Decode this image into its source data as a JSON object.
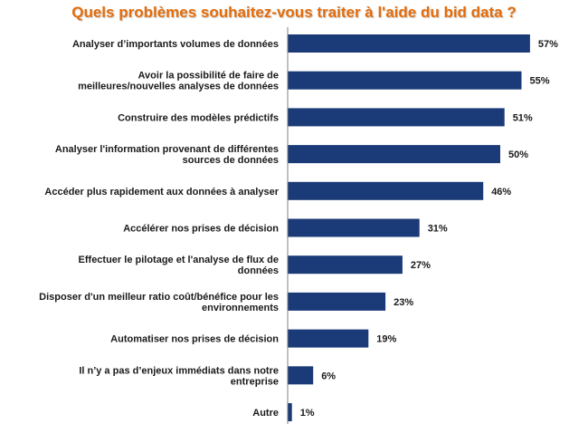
{
  "chart_data": {
    "type": "bar",
    "orientation": "horizontal",
    "title": "Quels problèmes souhaitez-vous traiter à l'aide du bid data ?",
    "xlim": [
      0,
      60
    ],
    "grid": false,
    "legend": "none",
    "bar_color": "#1b3a78",
    "title_color": "#e46c0a",
    "value_suffix": "%",
    "categories": [
      [
        "Analyser d’importants volumes de données"
      ],
      [
        "Avoir la possibilité de faire de",
        "meilleures/nouvelles analyses de données"
      ],
      [
        "Construire des modèles prédictifs"
      ],
      [
        "Analyser l'information provenant de différentes",
        "sources de données"
      ],
      [
        "Accéder plus rapidement aux données à analyser"
      ],
      [
        "Accélérer nos prises de décision"
      ],
      [
        "Effectuer le pilotage et l'analyse de flux de",
        "données"
      ],
      [
        "Disposer d'un meilleur ratio coût/bénéfice pour les",
        "environnements"
      ],
      [
        "Automatiser nos prises de décision"
      ],
      [
        "Il n’y a pas d’enjeux immédiats dans notre",
        "entreprise"
      ],
      [
        "Autre"
      ]
    ],
    "values": [
      57,
      55,
      51,
      50,
      46,
      31,
      27,
      23,
      19,
      6,
      1
    ]
  }
}
